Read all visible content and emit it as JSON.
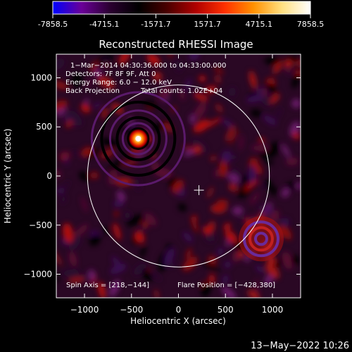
{
  "colorbar": {
    "ticks": [
      "-7858.5",
      "-4715.1",
      "-1571.7",
      "1571.7",
      "4715.1",
      "7858.5"
    ],
    "colors": [
      "#0000ff",
      "#6a0098",
      "#2a0030",
      "#000000",
      "#4a0000",
      "#b00000",
      "#ff3000",
      "#ff9000",
      "#ffe080",
      "#ffffff"
    ]
  },
  "chart_data": {
    "type": "heatmap",
    "title": "Reconstructed RHESSI Image",
    "xlabel": "Heliocentric X (arcsec)",
    "ylabel": "Heliocentric Y (arcsec)",
    "xlim": [
      -1300,
      1300
    ],
    "ylim": [
      -1240,
      1240
    ],
    "x_ticks": [
      -1000,
      -500,
      0,
      500,
      1000
    ],
    "y_ticks": [
      1000,
      500,
      0,
      -500,
      -1000
    ],
    "x_tick_labels": [
      "−1000",
      "−500",
      "0",
      "500",
      "1000"
    ],
    "y_tick_labels": [
      "1000",
      "500",
      "0",
      "−500",
      "−1000"
    ],
    "solar_radius_arcsec": 968,
    "source_peak": [
      -428,
      380
    ],
    "secondary_feature": [
      880,
      -640
    ],
    "spin_axis": [
      218,
      -144
    ],
    "annotations": {
      "time": "1−Mar−2014 04:30:36.000 to 04:33:00.000",
      "detectors": "Detectors: 7F 8F 9F, Att 0",
      "energy": "Energy Range: 6.0 − 12.0 keV",
      "method": "Back Projection",
      "counts": "Total counts: 1.02E+04",
      "spin_axis": "Spin Axis = [218,−144]",
      "flare_position": "Flare Position = [−428,380]"
    }
  },
  "footer": {
    "timestamp": "13−May−2022 10:26"
  }
}
